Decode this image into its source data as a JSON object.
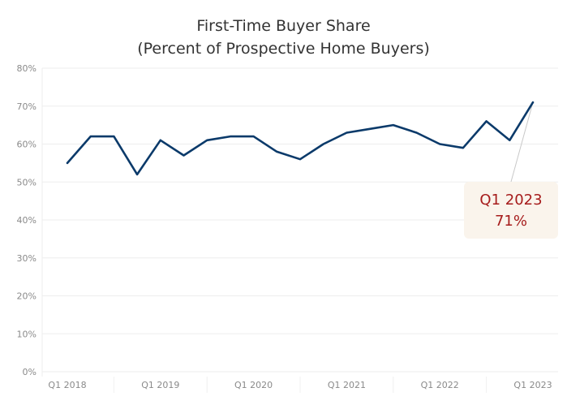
{
  "chart_data": {
    "type": "line",
    "title": "First-Time Buyer Share",
    "subtitle": "(Percent of Prospective Home Buyers)",
    "xlabel": "",
    "ylabel": "",
    "ylim": [
      0,
      80
    ],
    "yticks": [
      "0%",
      "10%",
      "20%",
      "30%",
      "40%",
      "50%",
      "60%",
      "70%",
      "80%"
    ],
    "xtick_labels": [
      "Q1 2018",
      "Q1 2019",
      "Q1 2020",
      "Q1 2021",
      "Q1 2022",
      "Q1 2023"
    ],
    "x": [
      "Q1 2018",
      "Q2 2018",
      "Q3 2018",
      "Q4 2018",
      "Q1 2019",
      "Q2 2019",
      "Q3 2019",
      "Q4 2019",
      "Q1 2020",
      "Q2 2020",
      "Q3 2020",
      "Q4 2020",
      "Q1 2021",
      "Q2 2021",
      "Q3 2021",
      "Q4 2021",
      "Q1 2022",
      "Q2 2022",
      "Q3 2022",
      "Q4 2022",
      "Q1 2023"
    ],
    "series": [
      {
        "values": [
          55,
          62,
          62,
          52,
          61,
          57,
          61,
          62,
          62,
          58,
          56,
          60,
          63,
          64,
          65,
          63,
          60,
          59,
          66,
          61,
          71
        ],
        "color": "#0b3a6a"
      }
    ],
    "grid": true,
    "annotation": {
      "line1": "Q1 2023",
      "line2": "71%",
      "color": "#a61c1c"
    }
  }
}
